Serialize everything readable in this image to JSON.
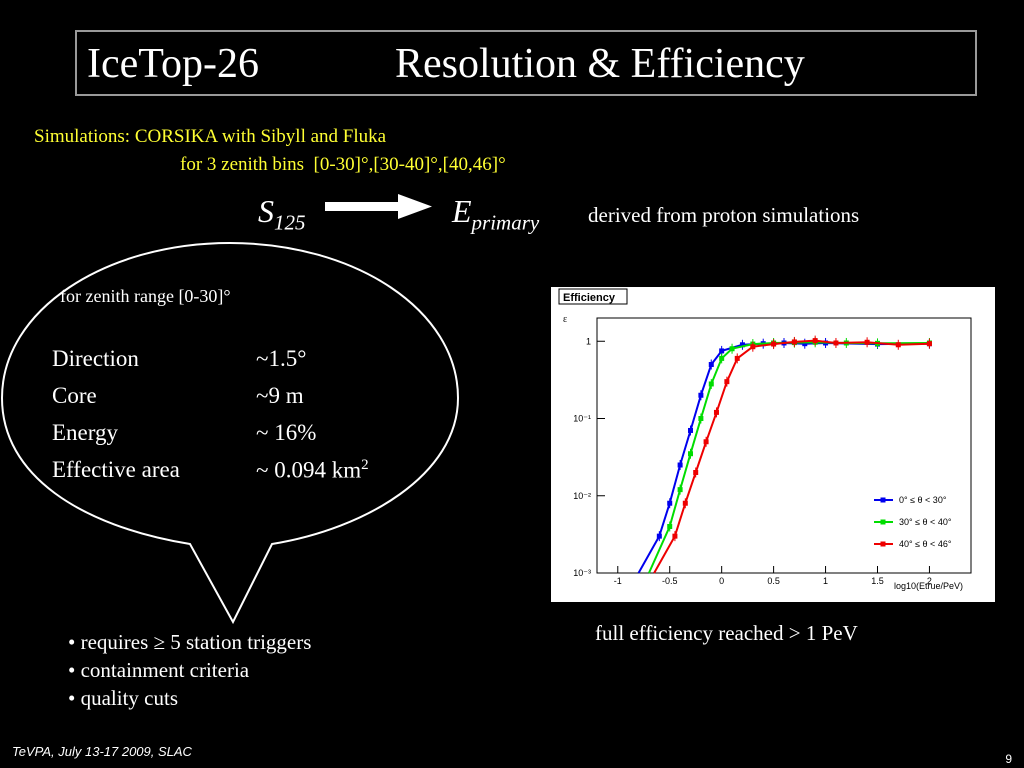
{
  "title": {
    "left": "IceTop-26",
    "right": "Resolution & Efficiency"
  },
  "simulation": {
    "line1": "Simulations: CORSIKA with Sibyll and Fluka",
    "line2": "for 3 zenith bins  [0-30]°,[30-40]°,[40,46]°"
  },
  "formula": {
    "s_main": "S",
    "s_sub": "125",
    "e_main": "E",
    "e_sub": "primary",
    "note": "derived from proton simulations"
  },
  "resolution": {
    "zenith_note": "for zenith range [0-30]°",
    "params": [
      {
        "label": "Direction",
        "value": "~1.5°"
      },
      {
        "label": "Core",
        "value": "~9 m"
      },
      {
        "label": "Energy",
        "value": "~ 16%"
      },
      {
        "label": "Effective area",
        "value": "~ 0.094 km",
        "sup": "2"
      }
    ]
  },
  "cuts": [
    "• requires ≥ 5 station triggers",
    "• containment criteria",
    "• quality cuts"
  ],
  "caption": "full efficiency reached > 1 PeV",
  "footer": {
    "event": "TeVPA, July 13-17 2009, SLAC",
    "page": "9"
  },
  "chart_data": {
    "type": "line",
    "title": "Efficiency",
    "ylabel": "ε",
    "xlabel": "log10(Etrue/PeV)",
    "xlim": [
      -1.2,
      2.4
    ],
    "ylim": [
      0.001,
      2
    ],
    "yscale": "log",
    "xticks": [
      "-1",
      "-0.5",
      "0",
      "0.5",
      "1",
      "1.5",
      "2"
    ],
    "yticks": [
      "10⁻³",
      "10⁻²",
      "10⁻¹",
      "1"
    ],
    "legend_position": "bottom-right",
    "series": [
      {
        "name": "0° ≤ θ < 30°",
        "color": "#0000ee",
        "x": [
          -0.6,
          -0.5,
          -0.4,
          -0.3,
          -0.2,
          -0.1,
          0.0,
          0.2,
          0.4,
          0.6,
          0.8,
          1.0,
          1.5,
          2.0
        ],
        "y": [
          0.003,
          0.008,
          0.025,
          0.07,
          0.2,
          0.5,
          0.75,
          0.9,
          0.93,
          0.95,
          0.93,
          0.95,
          0.92,
          0.93
        ]
      },
      {
        "name": "30° ≤ θ < 40°",
        "color": "#00dd00",
        "x": [
          -0.5,
          -0.4,
          -0.3,
          -0.2,
          -0.1,
          0.0,
          0.1,
          0.3,
          0.5,
          0.7,
          0.9,
          1.2,
          1.5,
          2.0
        ],
        "y": [
          0.004,
          0.012,
          0.035,
          0.1,
          0.28,
          0.6,
          0.8,
          0.92,
          0.95,
          0.96,
          0.97,
          0.95,
          0.94,
          0.95
        ]
      },
      {
        "name": "40° ≤ θ < 46°",
        "color": "#ee0000",
        "x": [
          -0.45,
          -0.35,
          -0.25,
          -0.15,
          -0.05,
          0.05,
          0.15,
          0.3,
          0.5,
          0.7,
          0.9,
          1.1,
          1.4,
          1.7,
          2.0
        ],
        "y": [
          0.003,
          0.008,
          0.02,
          0.05,
          0.12,
          0.3,
          0.6,
          0.85,
          0.92,
          0.98,
          1.02,
          0.95,
          0.97,
          0.9,
          0.93
        ]
      }
    ]
  }
}
